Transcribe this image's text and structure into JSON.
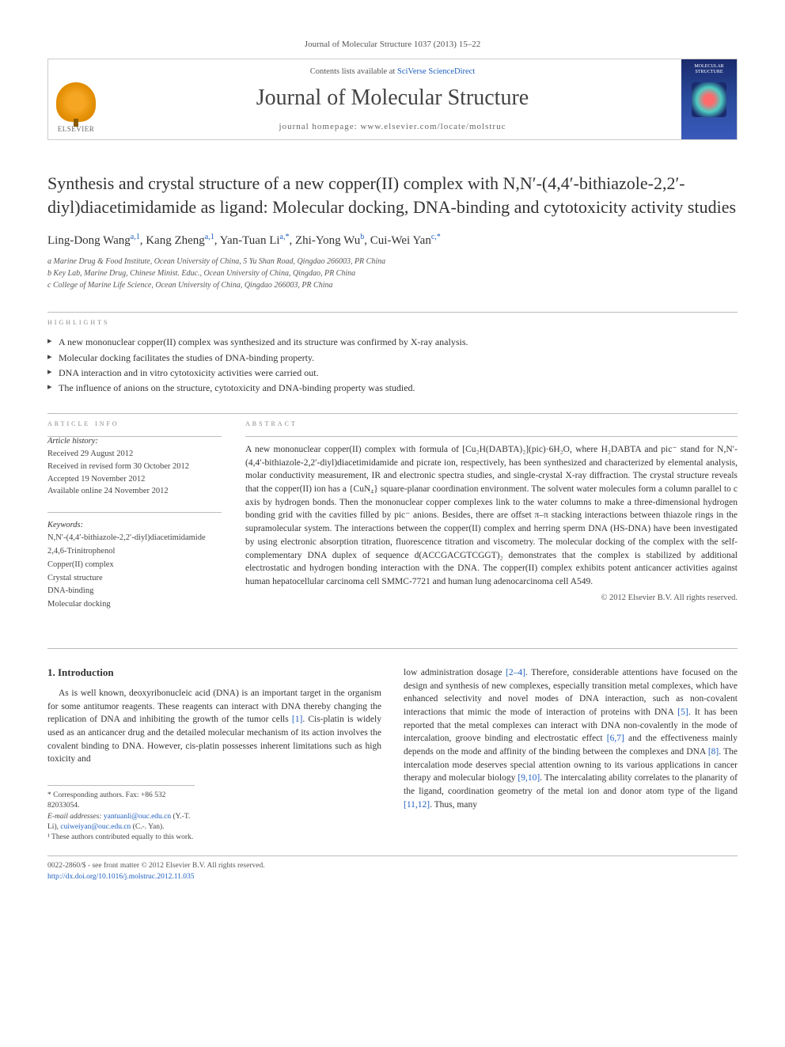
{
  "journal_ref": "Journal of Molecular Structure 1037 (2013) 15–22",
  "header": {
    "contents_prefix": "Contents lists available at ",
    "contents_link": "SciVerse ScienceDirect",
    "journal_name": "Journal of Molecular Structure",
    "homepage_prefix": "journal homepage: ",
    "homepage_url": "www.elsevier.com/locate/molstruc",
    "publisher_logo_text": "ELSEVIER",
    "cover_title": "MOLECULAR STRUCTURE"
  },
  "title": "Synthesis and crystal structure of a new copper(II) complex with N,N′-(4,4′-bithiazole-2,2′-diyl)diacetimidamide as ligand: Molecular docking, DNA-binding and cytotoxicity activity studies",
  "authors_html": "Ling-Dong Wang<sup>a,1</sup>, Kang Zheng<sup>a,1</sup>, Yan-Tuan Li<sup>a,*</sup>, Zhi-Yong Wu<sup>b</sup>, Cui-Wei Yan<sup>c,*</sup>",
  "affiliations": [
    "a Marine Drug & Food Institute, Ocean University of China, 5 Yu Shan Road, Qingdao 266003, PR China",
    "b Key Lab, Marine Drug, Chinese Minist. Educ., Ocean University of China, Qingdao, PR China",
    "c College of Marine Life Science, Ocean University of China, Qingdao 266003, PR China"
  ],
  "highlights_label": "HIGHLIGHTS",
  "highlights": [
    "A new mononuclear copper(II) complex was synthesized and its structure was confirmed by X-ray analysis.",
    "Molecular docking facilitates the studies of DNA-binding property.",
    "DNA interaction and in vitro cytotoxicity activities were carried out.",
    "The influence of anions on the structure, cytotoxicity and DNA-binding property was studied."
  ],
  "info": {
    "article_info_label": "ARTICLE INFO",
    "abstract_label": "ABSTRACT",
    "history_head": "Article history:",
    "history": [
      "Received 29 August 2012",
      "Received in revised form 30 October 2012",
      "Accepted 19 November 2012",
      "Available online 24 November 2012"
    ],
    "keywords_head": "Keywords:",
    "keywords": [
      "N,N′-(4,4′-bithiazole-2,2′-diyl)diacetimidamide",
      "2,4,6-Trinitrophenol",
      "Copper(II) complex",
      "Crystal structure",
      "DNA-binding",
      "Molecular docking"
    ]
  },
  "abstract": "A new mononuclear copper(II) complex with formula of [Cu₂H(DABTA)₂](pic)·6H₂O, where H₂DABTA and pic⁻ stand for N,N′-(4,4′-bithiazole-2,2′-diyl)diacetimidamide and picrate ion, respectively, has been synthesized and characterized by elemental analysis, molar conductivity measurement, IR and electronic spectra studies, and single-crystal X-ray diffraction. The crystal structure reveals that the copper(II) ion has a {CuN₄} square-planar coordination environment. The solvent water molecules form a column parallel to c axis by hydrogen bonds. Then the mononuclear copper complexes link to the water columns to make a three-dimensional hydrogen bonding grid with the cavities filled by pic⁻ anions. Besides, there are offset π–π stacking interactions between thiazole rings in the supramolecular system. The interactions between the copper(II) complex and herring sperm DNA (HS-DNA) have been investigated by using electronic absorption titration, fluorescence titration and viscometry. The molecular docking of the complex with the self-complementary DNA duplex of sequence d(ACCGACGTCGGT)₂ demonstrates that the complex is stabilized by additional electrostatic and hydrogen bonding interaction with the DNA. The copper(II) complex exhibits potent anticancer activities against human hepatocellular carcinoma cell SMMC-7721 and human lung adenocarcinoma cell A549.",
  "copyright": "© 2012 Elsevier B.V. All rights reserved.",
  "intro": {
    "heading": "1. Introduction",
    "col1": "As is well known, deoxyribonucleic acid (DNA) is an important target in the organism for some antitumor reagents. These reagents can interact with DNA thereby changing the replication of DNA and inhibiting the growth of the tumor cells [1]. Cis-platin is widely used as an anticancer drug and the detailed molecular mechanism of its action involves the covalent binding to DNA. However, cis-platin possesses inherent limitations such as high toxicity and",
    "col2": "low administration dosage [2–4]. Therefore, considerable attentions have focused on the design and synthesis of new complexes, especially transition metal complexes, which have enhanced selectivity and novel modes of DNA interaction, such as non-covalent interactions that mimic the mode of interaction of proteins with DNA [5]. It has been reported that the metal complexes can interact with DNA non-covalently in the mode of intercalation, groove binding and electrostatic effect [6,7] and the effectiveness mainly depends on the mode and affinity of the binding between the complexes and DNA [8]. The intercalation mode deserves special attention owning to its various applications in cancer therapy and molecular biology [9,10]. The intercalating ability correlates to the planarity of the ligand, coordination geometry of the metal ion and donor atom type of the ligand [11,12]. Thus, many"
  },
  "footnotes": {
    "corr": "* Corresponding authors. Fax: +86 532 82033054.",
    "email_label": "E-mail addresses:",
    "email1": "yantuanli@ouc.edu.cn",
    "email1_who": "(Y.-T. Li),",
    "email2": "cuiweiyan@ouc.edu.cn",
    "email2_who": "(C.-. Yan).",
    "contrib": "¹ These authors contributed equally to this work."
  },
  "doi": {
    "issn": "0022-2860/$ - see front matter © 2012 Elsevier B.V. All rights reserved.",
    "link_label": "http://dx.doi.org/10.1016/j.molstruc.2012.11.035"
  },
  "colors": {
    "link": "#2060c0",
    "text": "#333333",
    "muted": "#888888",
    "rule": "#bbbbbb"
  }
}
